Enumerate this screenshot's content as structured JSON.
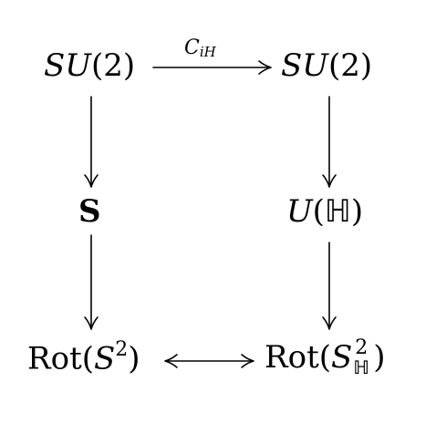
{
  "nodes": {
    "top_left": {
      "pre": "SU",
      "post": "(2)"
    },
    "top_right": {
      "pre": "SU",
      "post": "(2)"
    },
    "mid_left": {
      "text": "S"
    },
    "mid_right": {
      "pre": "U",
      "open": "(",
      "set": "ℍ",
      "close": ")"
    },
    "bottom_left": {
      "rot": "Rot",
      "open": "(",
      "space": "S",
      "exp": "2",
      "close": ")"
    },
    "bottom_right": {
      "rot": "Rot",
      "open": "(",
      "space": "S",
      "exp": "2",
      "sub": "ℍ",
      "close": ")"
    }
  },
  "edges": {
    "top": {
      "label_main": "C",
      "label_sub": "iH"
    }
  }
}
